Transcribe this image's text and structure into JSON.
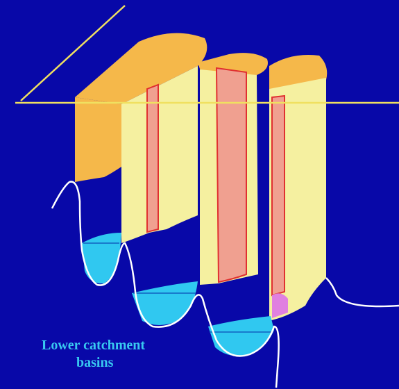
{
  "label": {
    "lines": [
      "Lower catchment",
      "basins"
    ]
  }
}
